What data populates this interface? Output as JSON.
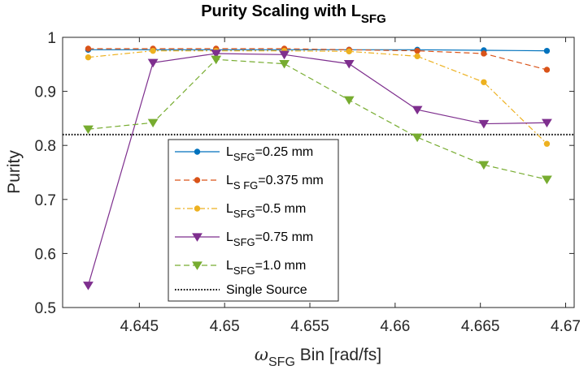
{
  "chart_data": {
    "type": "line",
    "title_main": "Purity Scaling with L",
    "title_sub": "SFG",
    "xlabel_symbol": "ω",
    "xlabel_sub": "SFG",
    "xlabel_rest": " Bin [rad/fs]",
    "ylabel": "Purity",
    "xlim": [
      4.6405,
      4.6705
    ],
    "ylim": [
      0.5,
      1.0
    ],
    "x_ticks": [
      4.645,
      4.65,
      4.655,
      4.66,
      4.665,
      4.67
    ],
    "x_tick_labels": [
      "4.645",
      "4.65",
      "4.655",
      "4.66",
      "4.665",
      "4.67"
    ],
    "y_ticks": [
      0.5,
      0.6,
      0.7,
      0.8,
      0.9,
      1.0
    ],
    "y_tick_labels": [
      "0.5",
      "0.6",
      "0.7",
      "0.8",
      "0.9",
      "1"
    ],
    "x": [
      4.642,
      4.6458,
      4.6495,
      4.6535,
      4.6573,
      4.6613,
      4.6652,
      4.6689
    ],
    "series": [
      {
        "name": "0.25 mm",
        "label_main": "L",
        "label_sub": "SFG",
        "label_rest": "=0.25 mm",
        "color": "#0072BD",
        "dash": "solid",
        "marker": "circle",
        "values": [
          0.977,
          0.977,
          0.977,
          0.977,
          0.977,
          0.977,
          0.976,
          0.975
        ]
      },
      {
        "name": "0.375 mm",
        "label_main": "L",
        "label_sub": "S FG",
        "label_rest": "=0.375 mm",
        "color": "#D95319",
        "dash": "dashed",
        "marker": "circle",
        "values": [
          0.979,
          0.979,
          0.979,
          0.979,
          0.977,
          0.975,
          0.97,
          0.94
        ]
      },
      {
        "name": "0.5 mm",
        "label_main": "L",
        "label_sub": "SFG",
        "label_rest": "=0.5 mm",
        "color": "#EDB120",
        "dash": "dashdot",
        "marker": "circle",
        "values": [
          0.963,
          0.975,
          0.975,
          0.975,
          0.974,
          0.965,
          0.917,
          0.803
        ]
      },
      {
        "name": "0.75 mm",
        "label_main": "L",
        "label_sub": "SFG",
        "label_rest": "=0.75 mm",
        "color": "#7E2F8E",
        "dash": "solid",
        "marker": "triangle-down",
        "values": [
          0.541,
          0.953,
          0.97,
          0.968,
          0.951,
          0.866,
          0.84,
          0.842
        ]
      },
      {
        "name": "1.0 mm",
        "label_main": "L",
        "label_sub": "SFG",
        "label_rest": "=1.0 mm",
        "color": "#77AC30",
        "dash": "dashed",
        "marker": "triangle-down",
        "values": [
          0.83,
          0.842,
          0.959,
          0.951,
          0.884,
          0.815,
          0.764,
          0.737
        ]
      }
    ],
    "reference_line": {
      "name": "Single Source",
      "value": 0.82,
      "color": "#000000",
      "dash": "dotted"
    },
    "legend_location": "center"
  }
}
